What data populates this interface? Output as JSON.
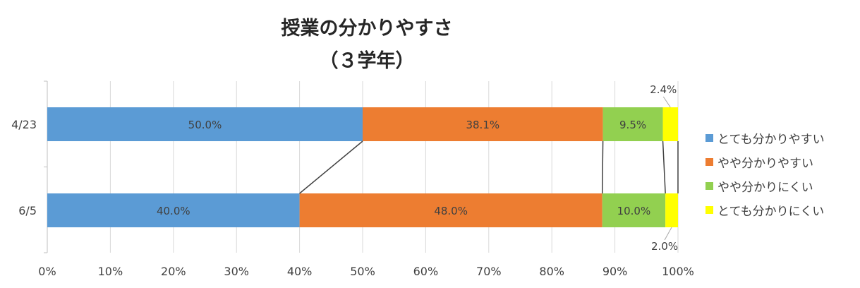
{
  "chart_data": {
    "type": "bar",
    "orientation": "horizontal-stacked-100",
    "title": "授業の分かりやすさ",
    "subtitle": "（３学年）",
    "categories": [
      "4/23",
      "6/5"
    ],
    "series": [
      {
        "name": "とても分かりやすい",
        "color": "#5B9BD5",
        "values": [
          50.0,
          40.0
        ],
        "labels": [
          "50.0%",
          "40.0%"
        ]
      },
      {
        "name": "やや分かりやすい",
        "color": "#ED7D31",
        "values": [
          38.1,
          48.0
        ],
        "labels": [
          "38.1%",
          "48.0%"
        ]
      },
      {
        "name": "やや分かりにくい",
        "color": "#92D050",
        "values": [
          9.5,
          10.0
        ],
        "labels": [
          "9.5%",
          "10.0%"
        ]
      },
      {
        "name": "とても分かりにくい",
        "color": "#FFFF00",
        "values": [
          2.4,
          2.0
        ],
        "labels": [
          "2.4%",
          "2.0%"
        ]
      }
    ],
    "x_ticks": [
      "0%",
      "10%",
      "20%",
      "30%",
      "40%",
      "50%",
      "60%",
      "70%",
      "80%",
      "90%",
      "100%"
    ],
    "xlim": [
      0,
      100
    ],
    "grid": true,
    "series_lines": true,
    "legend_position": "right"
  }
}
